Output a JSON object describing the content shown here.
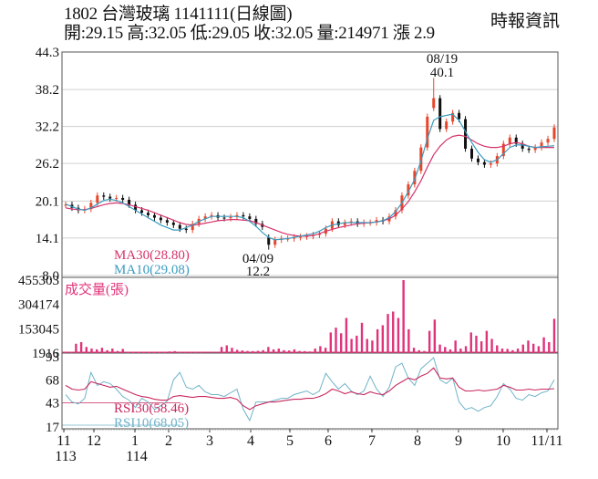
{
  "header": {
    "title": "1802  台灣玻璃 1141111(日線圖)",
    "quote": "開:29.15 高:32.05 低:29.05 收:32.05 量:214971 漲 2.9",
    "source": "時報資訊"
  },
  "colors": {
    "up": "#e8452a",
    "down": "#111111",
    "ma30": "#d6336c",
    "ma10": "#3a9bbf",
    "volume": "#e0337a",
    "rsi30": "#c8285e",
    "rsi10": "#6fb3c8",
    "grid": "#d0d0d0",
    "frame": "#555555"
  },
  "chart_data": [
    {
      "type": "candlestick",
      "title": "1802 台灣玻璃 1141111(日線圖)",
      "panel": "price",
      "y_ticks": [
        "44.3",
        "38.2",
        "32.2",
        "26.2",
        "20.1",
        "14.1",
        "8.0"
      ],
      "ylim": [
        8.0,
        44.3
      ],
      "grid": true,
      "x_ticks": [
        "11",
        "12",
        "1",
        "2",
        "3",
        "4",
        "5",
        "6",
        "7",
        "8",
        "9",
        "10",
        "11/11"
      ],
      "x_year_labels": [
        {
          "at": "11",
          "label": "113"
        },
        {
          "at": "1",
          "label": "114"
        }
      ],
      "legend": [
        {
          "name": "MA30",
          "label": "MA30(28.80)",
          "value": 28.8
        },
        {
          "name": "MA10",
          "label": "MA10(29.08)",
          "value": 29.08
        }
      ],
      "annotations": [
        {
          "date": "08/19",
          "label": "40.1",
          "type": "high"
        },
        {
          "date": "04/09",
          "label": "12.2",
          "type": "low"
        }
      ],
      "close_series_approx": [
        19.5,
        19.0,
        18.6,
        18.8,
        19.8,
        21.0,
        20.8,
        20.5,
        20.6,
        20.3,
        19.5,
        18.6,
        18.2,
        17.8,
        17.4,
        17.0,
        16.6,
        16.2,
        15.6,
        15.4,
        16.4,
        17.2,
        17.6,
        17.8,
        17.4,
        17.3,
        17.5,
        17.8,
        17.6,
        17.2,
        16.4,
        15.9,
        13.0,
        13.8,
        14.0,
        14.0,
        14.2,
        14.3,
        14.4,
        14.6,
        14.8,
        15.6,
        16.8,
        16.2,
        16.6,
        16.8,
        16.4,
        16.6,
        16.6,
        17.0,
        16.8,
        17.6,
        18.6,
        21.0,
        22.8,
        25.0,
        28.8,
        33.8,
        36.8,
        31.8,
        33.0,
        34.4,
        33.4,
        28.6,
        27.0,
        26.4,
        26.0,
        26.2,
        27.4,
        29.4,
        30.4,
        29.4,
        28.6,
        28.4,
        28.8,
        29.6,
        30.2,
        32.05
      ],
      "ma10_approx": [
        19.6,
        19.2,
        18.8,
        18.6,
        19.0,
        19.6,
        20.2,
        20.4,
        20.2,
        19.8,
        19.2,
        18.6,
        18.0,
        17.4,
        16.8,
        16.2,
        15.8,
        15.4,
        15.4,
        15.8,
        16.2,
        16.8,
        17.2,
        17.6,
        17.6,
        17.6,
        17.6,
        17.6,
        17.4,
        16.8,
        16.0,
        15.0,
        14.2,
        13.8,
        13.9,
        14.0,
        14.2,
        14.4,
        14.6,
        14.8,
        15.2,
        15.8,
        16.2,
        16.4,
        16.6,
        16.6,
        16.6,
        16.6,
        16.6,
        16.7,
        16.9,
        17.4,
        18.4,
        19.8,
        21.6,
        23.6,
        26.6,
        30.2,
        33.2,
        33.8,
        34.0,
        34.2,
        33.2,
        31.4,
        29.6,
        28.0,
        26.8,
        26.4,
        26.8,
        27.8,
        28.8,
        29.2,
        29.2,
        29.0,
        28.8,
        28.9,
        29.0,
        29.08
      ],
      "ma30_approx": [
        19.0,
        18.8,
        18.7,
        18.7,
        18.9,
        19.2,
        19.5,
        19.7,
        19.8,
        19.7,
        19.5,
        19.2,
        18.9,
        18.6,
        18.2,
        17.8,
        17.4,
        17.0,
        16.6,
        16.3,
        16.2,
        16.3,
        16.5,
        16.7,
        16.9,
        17.0,
        17.1,
        17.1,
        17.0,
        16.9,
        16.6,
        16.2,
        15.8,
        15.4,
        15.0,
        14.7,
        14.5,
        14.4,
        14.4,
        14.5,
        14.8,
        15.2,
        15.5,
        15.8,
        16.0,
        16.2,
        16.4,
        16.5,
        16.6,
        16.7,
        16.9,
        17.2,
        17.8,
        18.8,
        20.0,
        21.6,
        23.4,
        25.6,
        27.6,
        29.0,
        30.0,
        30.6,
        30.8,
        30.6,
        30.0,
        29.4,
        29.0,
        28.8,
        28.8,
        29.0,
        29.4,
        29.6,
        29.4,
        29.0,
        28.8,
        28.8,
        28.8,
        28.8
      ]
    },
    {
      "type": "bar",
      "panel": "volume",
      "title": "成交量(張)",
      "y_ticks": [
        "455303",
        "304174",
        "153045",
        "1916"
      ],
      "ylim": [
        1916,
        455303
      ],
      "values_approx": [
        5000,
        4000,
        60000,
        70000,
        40000,
        30000,
        25000,
        35000,
        20000,
        30000,
        15000,
        28000,
        10000,
        8000,
        6000,
        7000,
        6000,
        5000,
        5000,
        8000,
        12000,
        14000,
        10000,
        6000,
        5000,
        5000,
        4000,
        3000,
        3000,
        3000,
        40000,
        50000,
        35000,
        22000,
        18000,
        15000,
        14000,
        16000,
        20000,
        40000,
        25000,
        30000,
        20000,
        18000,
        25000,
        15000,
        14000,
        12000,
        30000,
        45000,
        35000,
        130000,
        160000,
        125000,
        220000,
        90000,
        110000,
        190000,
        90000,
        80000,
        150000,
        175000,
        245000,
        260000,
        220000,
        455303,
        150000,
        35000,
        20000,
        15000,
        140000,
        210000,
        55000,
        40000,
        25000,
        80000,
        30000,
        45000,
        130000,
        110000,
        75000,
        140000,
        90000,
        50000,
        30000,
        28000,
        20000,
        30000,
        55000,
        80000,
        60000,
        45000,
        100000,
        70000,
        214971
      ]
    },
    {
      "type": "line",
      "panel": "rsi",
      "y_ticks": [
        "93",
        "68",
        "43",
        "17"
      ],
      "ylim": [
        17,
        93
      ],
      "series": [
        {
          "name": "RSI30",
          "label": "RSI30(58.46)",
          "last": 58.46
        },
        {
          "name": "RSI10",
          "label": "RSI10(68.05)",
          "last": 68.05
        }
      ],
      "rsi30_approx": [
        62,
        58,
        57,
        58,
        66,
        64,
        62,
        60,
        61,
        58,
        55,
        52,
        50,
        49,
        47,
        46,
        46,
        50,
        51,
        50,
        49,
        50,
        50,
        49,
        48,
        48,
        49,
        47,
        40,
        36,
        40,
        42,
        44,
        44,
        45,
        46,
        47,
        47,
        48,
        48,
        50,
        53,
        58,
        56,
        53,
        55,
        53,
        52,
        55,
        53,
        52,
        56,
        62,
        66,
        70,
        68,
        72,
        75,
        81,
        70,
        69,
        70,
        60,
        56,
        56,
        57,
        56,
        57,
        58,
        62,
        60,
        57,
        57,
        58,
        57,
        58,
        58,
        58.46
      ],
      "rsi10_approx": [
        52,
        44,
        42,
        48,
        76,
        62,
        66,
        64,
        58,
        50,
        46,
        38,
        48,
        44,
        36,
        40,
        45,
        68,
        76,
        60,
        58,
        62,
        55,
        52,
        52,
        50,
        54,
        58,
        36,
        24,
        44,
        44,
        44,
        46,
        48,
        48,
        52,
        54,
        56,
        52,
        56,
        75,
        66,
        58,
        64,
        56,
        52,
        56,
        72,
        58,
        50,
        60,
        82,
        86,
        70,
        62,
        80,
        86,
        92,
        68,
        64,
        70,
        44,
        36,
        38,
        34,
        38,
        40,
        50,
        64,
        58,
        48,
        46,
        52,
        50,
        54,
        56,
        68.05
      ]
    }
  ]
}
